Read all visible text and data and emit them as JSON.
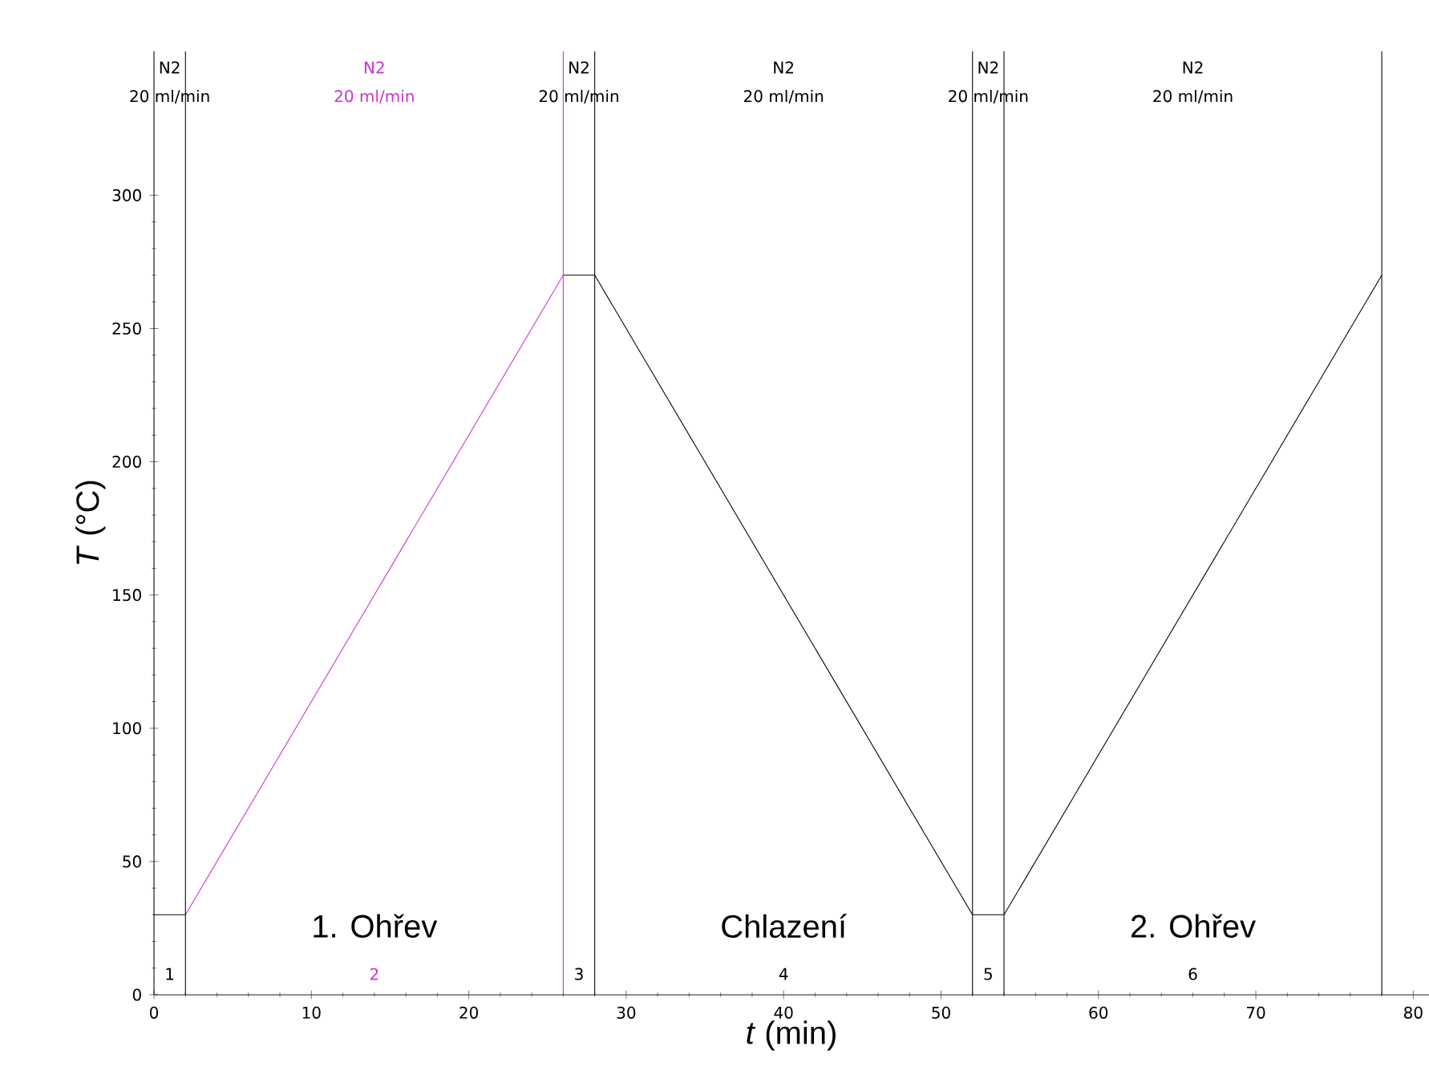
{
  "chart_data": {
    "type": "line",
    "xlabel": "*t* (min)",
    "ylabel": "*T* (°C)",
    "xlim": [
      0,
      81
    ],
    "ylim": [
      0,
      354
    ],
    "xticks": [
      0,
      10,
      20,
      30,
      40,
      50,
      60,
      70,
      80
    ],
    "yticks": [
      0,
      50,
      100,
      150,
      200,
      250,
      300
    ],
    "grid": false,
    "marker": "none",
    "line_style": "solid",
    "series": [
      {
        "color": "#000000",
        "x": [
          0,
          2
        ],
        "values": [
          30,
          30
        ]
      },
      {
        "color": "#cc33cc",
        "x": [
          2,
          26
        ],
        "values": [
          30,
          270
        ]
      },
      {
        "color": "#000000",
        "x": [
          26,
          28,
          52,
          54,
          78
        ],
        "values": [
          270,
          270,
          30,
          30,
          270
        ]
      }
    ],
    "ref_lines": [
      {
        "axis": "x",
        "value": 2,
        "color": "#000000"
      },
      {
        "axis": "x",
        "value": 26,
        "color": "#cc33cc"
      },
      {
        "axis": "x",
        "value": 28,
        "color": "#000000"
      },
      {
        "axis": "x",
        "value": 52,
        "color": "#000000"
      },
      {
        "axis": "x",
        "value": 54,
        "color": "#000000"
      },
      {
        "axis": "x",
        "value": 78,
        "color": "#000000"
      }
    ],
    "annotations": [
      "N2",
      "20 ml/min",
      "N2",
      "20 ml/min",
      "N2",
      "20 ml/min",
      "N2",
      "20 ml/min",
      "N2",
      "20 ml/min",
      "N2",
      "20 ml/min",
      "1",
      "2",
      "3",
      "4",
      "5",
      "6",
      "1. Ohřev",
      "Chlazení",
      "2. Ohřev"
    ]
  }
}
